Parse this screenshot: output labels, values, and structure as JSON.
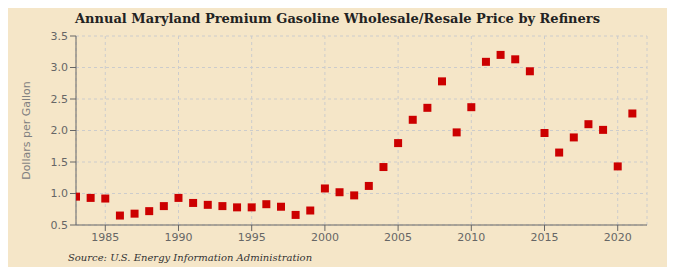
{
  "chart_data": {
    "type": "scatter",
    "title": "Annual Maryland Premium Gasoline Wholesale/Resale Price by Refiners",
    "ylabel": "Dollars per Gallon",
    "annotation": "Source: U.S. Energy Information Administration",
    "color": "#cc0000",
    "marker": "square",
    "grid": true,
    "xlim": [
      1983,
      2022
    ],
    "ylim": [
      0.5,
      3.5
    ],
    "xticks": [
      1985,
      1990,
      1995,
      2000,
      2005,
      2010,
      2015,
      2020
    ],
    "yticks": [
      0.5,
      {
        "value": 1,
        "label": "1.0"
      },
      1.5,
      {
        "value": 2,
        "label": "2.0"
      },
      2.5,
      {
        "value": 3,
        "label": "3.0"
      },
      3.5
    ],
    "x": [
      1983,
      1984,
      1985,
      1986,
      1987,
      1988,
      1989,
      1990,
      1991,
      1992,
      1993,
      1994,
      1995,
      1996,
      1997,
      1998,
      1999,
      2000,
      2001,
      2002,
      2003,
      2004,
      2005,
      2006,
      2007,
      2008,
      2009,
      2010,
      2011,
      2012,
      2013,
      2014,
      2015,
      2016,
      2017,
      2018,
      2019,
      2020,
      2021
    ],
    "values": [
      0.95,
      0.93,
      0.92,
      0.65,
      0.68,
      0.72,
      0.8,
      0.93,
      0.85,
      0.82,
      0.8,
      0.78,
      0.78,
      0.83,
      0.79,
      0.66,
      0.73,
      1.08,
      1.02,
      0.97,
      1.12,
      1.42,
      1.8,
      2.17,
      2.36,
      2.78,
      1.97,
      2.37,
      3.09,
      3.2,
      3.13,
      2.94,
      1.96,
      1.65,
      1.89,
      2.1,
      2.01,
      1.43,
      2.27
    ]
  }
}
